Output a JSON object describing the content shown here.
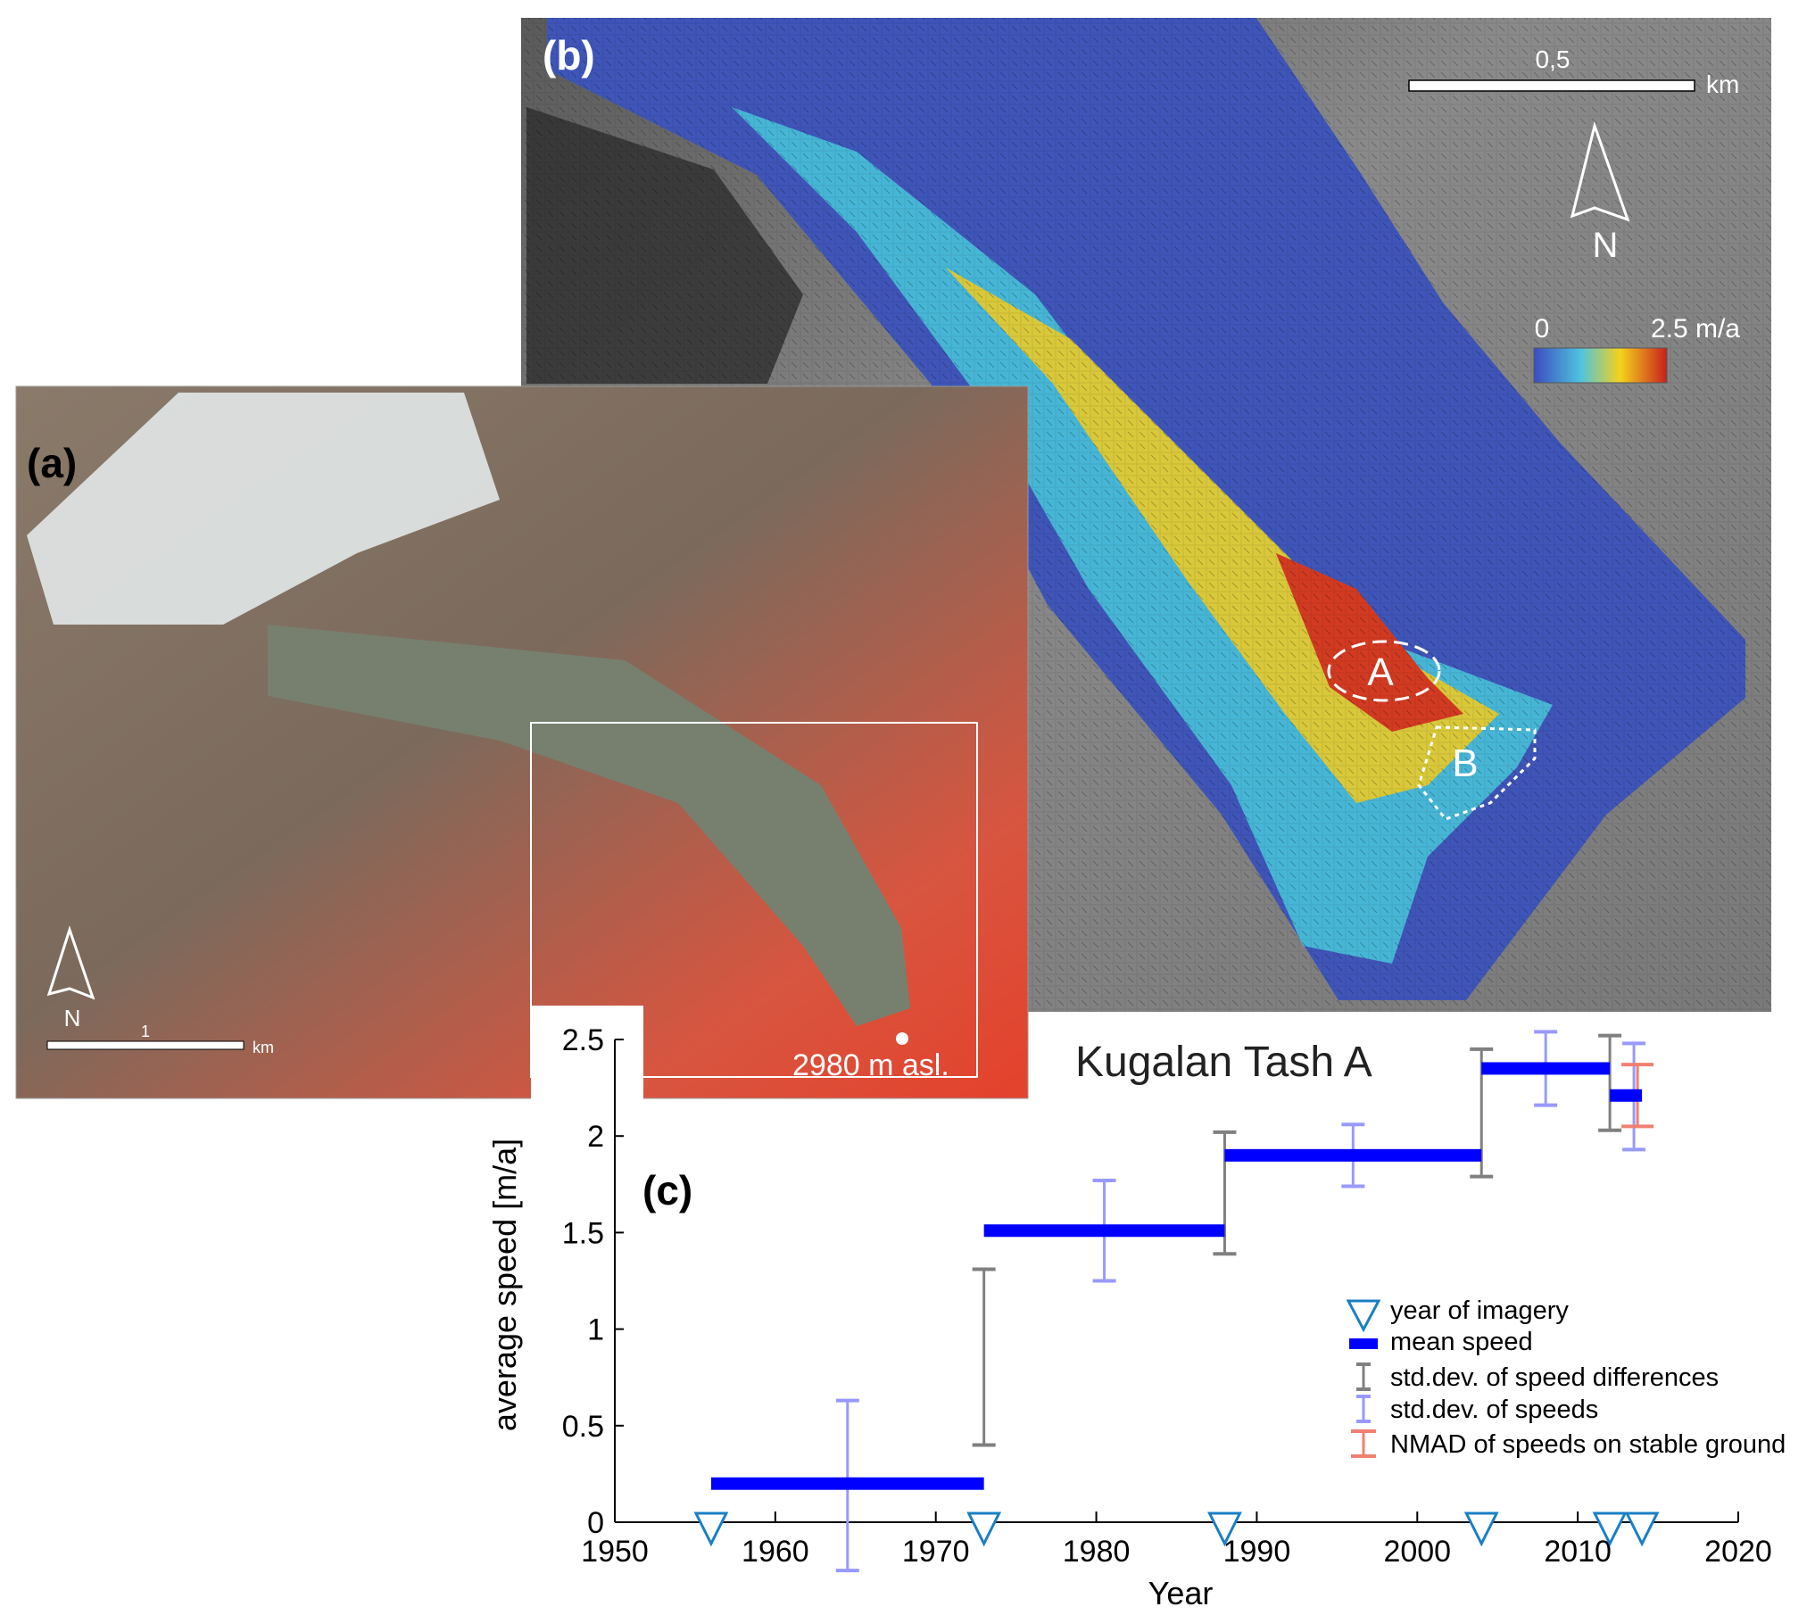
{
  "panel_b": {
    "label": "(b)",
    "scale_value": "0,5",
    "scale_unit": "km",
    "north": "N",
    "colorbar_min": "0",
    "colorbar_max": "2.5 m/a",
    "colorbar_colors": [
      "#3b4cc0",
      "#4ec3df",
      "#f5d21c",
      "#c8201e"
    ],
    "area_a": "A",
    "area_b": "B"
  },
  "panel_a": {
    "label": "(a)",
    "scale_value": "1",
    "scale_unit": "km",
    "north": "N",
    "elevation": "2980 m asl."
  },
  "chart_data": {
    "type": "line",
    "panel_label": "(c)",
    "title": "Kugalan Tash A",
    "xlabel": "Year",
    "ylabel": "average speed [m/a]",
    "xlim": [
      1950,
      2020
    ],
    "ylim": [
      0,
      2.5
    ],
    "xticks": [
      "1950",
      "1960",
      "1970",
      "1980",
      "1990",
      "2000",
      "2010",
      "2020"
    ],
    "yticks": [
      "0",
      "0.5",
      "1",
      "1.5",
      "2",
      "2.5"
    ],
    "grid": false,
    "legend_placement": "bottom-right",
    "imagery_years": [
      1956,
      1973,
      1988,
      2004,
      2012,
      2014
    ],
    "mean_speed": [
      {
        "from": 1956,
        "to": 1973,
        "value": 0.2
      },
      {
        "from": 1973,
        "to": 1988,
        "value": 1.51
      },
      {
        "from": 1988,
        "to": 2004,
        "value": 1.9
      },
      {
        "from": 2004,
        "to": 2012,
        "value": 2.35
      },
      {
        "from": 2012,
        "to": 2014,
        "value": 2.21
      }
    ],
    "std_speeds": [
      {
        "x": 1964.5,
        "low": -0.25,
        "high": 0.63
      },
      {
        "x": 1980.5,
        "low": 1.25,
        "high": 1.77
      },
      {
        "x": 1996,
        "low": 1.74,
        "high": 2.06
      },
      {
        "x": 2008,
        "low": 2.16,
        "high": 2.54
      },
      {
        "x": 2013.5,
        "low": 1.93,
        "high": 2.48
      }
    ],
    "std_speed_differences": [
      {
        "x": 1973,
        "low": 0.4,
        "high": 1.31
      },
      {
        "x": 1988,
        "low": 1.39,
        "high": 2.02
      },
      {
        "x": 2004,
        "low": 1.79,
        "high": 2.45
      },
      {
        "x": 2012,
        "low": 2.03,
        "high": 2.52
      }
    ],
    "nmad_stable_ground": [
      {
        "x": 2013,
        "low": 2.05,
        "high": 2.37
      }
    ],
    "colors": {
      "imagery": "#1a7fc4",
      "mean_speed": "#0000ff",
      "std_speed_differences": "#808080",
      "std_speeds": "#9999ff",
      "nmad": "#f08070"
    },
    "legend": [
      "year of imagery",
      "mean speed",
      "std.dev. of speed differences",
      "std.dev. of speeds",
      "NMAD of speeds on stable ground"
    ]
  }
}
